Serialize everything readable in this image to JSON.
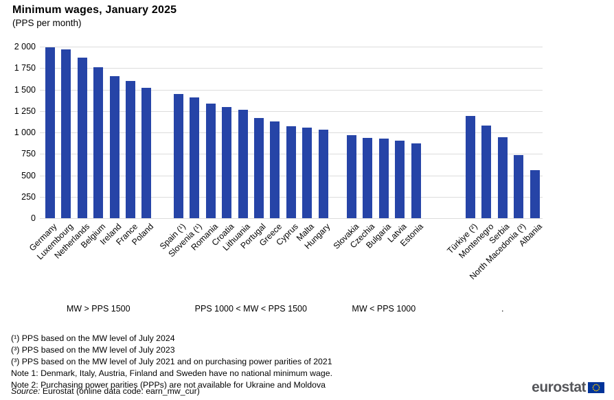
{
  "title": "Minimum wages, January 2025",
  "subtitle": "(PPS per month)",
  "chart_data": {
    "type": "bar",
    "title": "Minimum wages, January 2025",
    "subtitle": "(PPS per month)",
    "ylabel": "",
    "xlabel": "",
    "ylim": [
      0,
      2000
    ],
    "yticks": [
      0,
      250,
      500,
      750,
      1000,
      1250,
      1500,
      1750,
      2000
    ],
    "ytick_labels": [
      "0",
      "250",
      "500",
      "750",
      "1 000",
      "1 250",
      "1 500",
      "1 750",
      "2 000"
    ],
    "grid": true,
    "bar_color": "#2644a7",
    "gridline_color": "#dcdcdc",
    "groups": [
      {
        "label": "MW > PPS 1500",
        "categories": [
          "Germany",
          "Luxembourg",
          "Netherlands",
          "Belgium",
          "Ireland",
          "France",
          "Poland"
        ],
        "values": [
          1990,
          1965,
          1875,
          1760,
          1660,
          1600,
          1520
        ]
      },
      {
        "label": "PPS 1000 < MW < PPS 1500",
        "categories": [
          "Spain (¹)",
          "Slovenia (¹)",
          "Romania",
          "Croatia",
          "Lithuania",
          "Portugal",
          "Greece",
          "Cyprus",
          "Malta",
          "Hungary"
        ],
        "values": [
          1450,
          1405,
          1340,
          1300,
          1265,
          1165,
          1130,
          1070,
          1055,
          1030
        ]
      },
      {
        "label": "MW < PPS 1000",
        "categories": [
          "Slovakia",
          "Czechia",
          "Bulgaria",
          "Latvia",
          "Estonia"
        ],
        "values": [
          970,
          935,
          930,
          905,
          875
        ]
      },
      {
        "label": ".",
        "categories": [
          "Türkiye (²)",
          "Montenegro",
          "Serbia",
          "North Macedonia (³)",
          "Albania"
        ],
        "values": [
          1195,
          1080,
          945,
          735,
          560
        ]
      }
    ]
  },
  "footnotes": [
    "(¹) PPS based on the MW level of July 2024",
    "(³) PPS based on the MW level of July 2023",
    "(³) PPS based on the MW level of July 2021 and on purchasing power parities of 2021",
    "Note 1: Denmark, Italy, Austria, Finland and Sweden have no national minimum wage.",
    "Note 2: Purchasing power parities (PPPs) are not available for Ukraine and Moldova"
  ],
  "source": {
    "label": "Source:",
    "text": "Eurostat (online data code: earn_mw_cur)"
  },
  "logo": {
    "text": "eurostat",
    "flag_color": "#003399",
    "star_color": "#ffcc00"
  }
}
